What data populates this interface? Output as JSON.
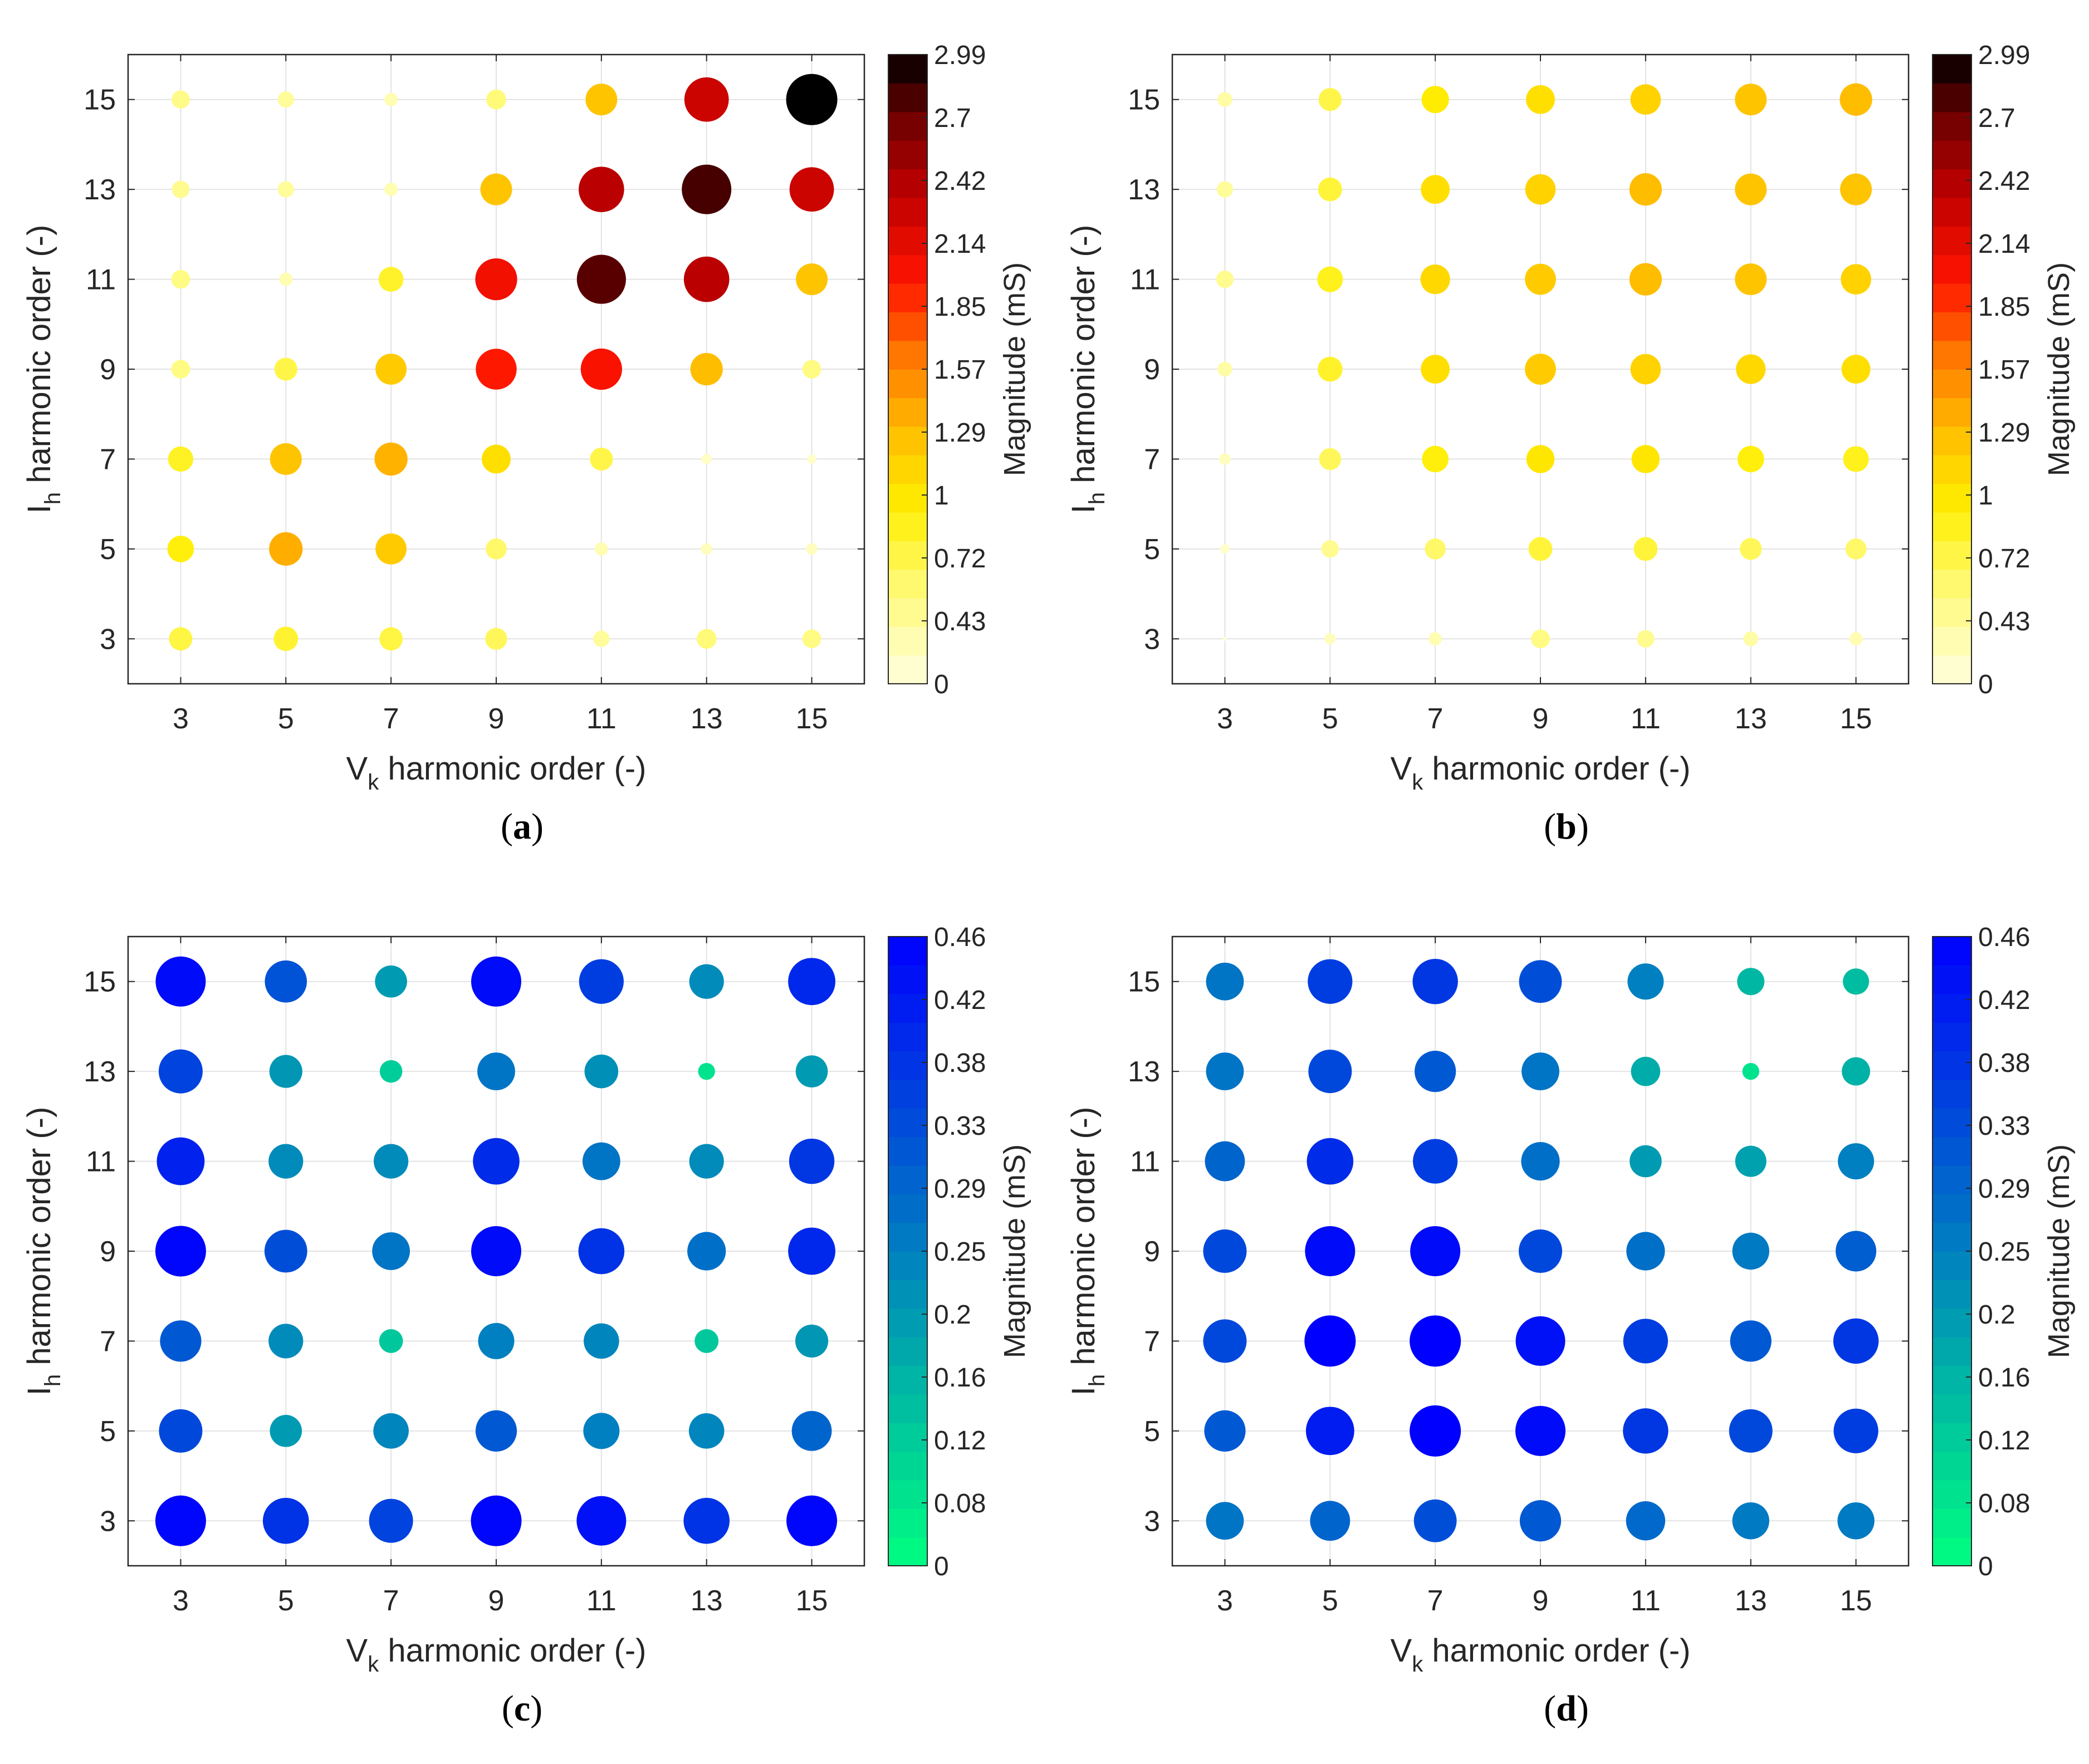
{
  "chart_data": [
    {
      "type": "scatter",
      "panel": "a",
      "caption": "a",
      "xlabel": "V",
      "xlabel_sub": "k",
      "xlabel_rest": " harmonic order (-)",
      "ylabel": "I",
      "ylabel_sub": "h",
      "ylabel_rest": " harmonic order (-)",
      "x_ticks": [
        3,
        5,
        7,
        9,
        11,
        13,
        15
      ],
      "y_ticks": [
        3,
        5,
        7,
        9,
        11,
        13,
        15
      ],
      "xlim": [
        2,
        16
      ],
      "ylim": [
        2,
        16
      ],
      "colorbar": {
        "label": "Magnitude (mS)",
        "min": 0,
        "max": 2.99,
        "ticks": [
          "0",
          "0.43",
          "0.72",
          "1",
          "1.29",
          "1.57",
          "1.85",
          "2.14",
          "2.42",
          "2.7",
          "2.99"
        ],
        "colormap": "hot"
      },
      "x": [
        3,
        5,
        7,
        9,
        11,
        13,
        15
      ],
      "y": [
        3,
        5,
        7,
        9,
        11,
        13,
        15
      ],
      "values": [
        [
          0.62,
          0.68,
          0.62,
          0.55,
          0.3,
          0.45,
          0.4
        ],
        [
          0.8,
          1.28,
          1.1,
          0.5,
          0.2,
          0.15,
          0.15
        ],
        [
          0.72,
          1.15,
          1.25,
          0.95,
          0.6,
          0.12,
          0.1
        ],
        [
          0.4,
          0.6,
          1.1,
          1.9,
          1.95,
          1.2,
          0.4
        ],
        [
          0.4,
          0.2,
          0.7,
          2.0,
          2.75,
          2.35,
          1.15
        ],
        [
          0.35,
          0.3,
          0.2,
          1.15,
          2.35,
          2.8,
          2.25
        ],
        [
          0.38,
          0.3,
          0.2,
          0.45,
          1.15,
          2.25,
          2.99
        ]
      ]
    },
    {
      "type": "scatter",
      "panel": "b",
      "caption": "b",
      "xlabel": "V",
      "xlabel_sub": "k",
      "xlabel_rest": " harmonic order (-)",
      "ylabel": "I",
      "ylabel_sub": "h",
      "ylabel_rest": " harmonic order (-)",
      "x_ticks": [
        3,
        5,
        7,
        9,
        11,
        13,
        15
      ],
      "y_ticks": [
        3,
        5,
        7,
        9,
        11,
        13,
        15
      ],
      "xlim": [
        2,
        16
      ],
      "ylim": [
        2,
        16
      ],
      "colorbar": {
        "label": "Magnitude (mS)",
        "min": 0,
        "max": 2.99,
        "ticks": [
          "0",
          "0.43",
          "0.72",
          "1",
          "1.29",
          "1.57",
          "1.85",
          "2.14",
          "2.42",
          "2.7",
          "2.99"
        ],
        "colormap": "hot"
      },
      "x": [
        3,
        5,
        7,
        9,
        11,
        13,
        15
      ],
      "y": [
        3,
        5,
        7,
        9,
        11,
        13,
        15
      ],
      "values": [
        [
          0.05,
          0.15,
          0.2,
          0.4,
          0.35,
          0.25,
          0.2
        ],
        [
          0.1,
          0.35,
          0.5,
          0.65,
          0.65,
          0.55,
          0.5
        ],
        [
          0.15,
          0.55,
          0.8,
          0.9,
          0.9,
          0.8,
          0.75
        ],
        [
          0.25,
          0.7,
          0.95,
          1.1,
          1.05,
          1.0,
          0.95
        ],
        [
          0.35,
          0.75,
          1.0,
          1.1,
          1.2,
          1.15,
          1.05
        ],
        [
          0.3,
          0.65,
          0.95,
          1.05,
          1.2,
          1.15,
          1.15
        ],
        [
          0.25,
          0.6,
          0.85,
          0.95,
          1.05,
          1.15,
          1.2
        ]
      ]
    },
    {
      "type": "scatter",
      "panel": "c",
      "caption": "c",
      "xlabel": "V",
      "xlabel_sub": "k",
      "xlabel_rest": " harmonic order (-)",
      "ylabel": "I",
      "ylabel_sub": "h",
      "ylabel_rest": " harmonic order (-)",
      "x_ticks": [
        3,
        5,
        7,
        9,
        11,
        13,
        15
      ],
      "y_ticks": [
        3,
        5,
        7,
        9,
        11,
        13,
        15
      ],
      "xlim": [
        2,
        16
      ],
      "ylim": [
        2,
        16
      ],
      "colorbar": {
        "label": "Magnitude (mS)",
        "min": 0,
        "max": 0.46,
        "ticks": [
          "0",
          "0.08",
          "0.12",
          "0.16",
          "0.2",
          "0.25",
          "0.29",
          "0.33",
          "0.38",
          "0.42",
          "0.46"
        ],
        "colormap": "winter"
      },
      "x": [
        3,
        5,
        7,
        9,
        11,
        13,
        15
      ],
      "y": [
        3,
        5,
        7,
        9,
        11,
        13,
        15
      ],
      "values": [
        [
          0.45,
          0.37,
          0.34,
          0.45,
          0.43,
          0.37,
          0.45
        ],
        [
          0.33,
          0.18,
          0.22,
          0.3,
          0.23,
          0.22,
          0.28
        ],
        [
          0.3,
          0.21,
          0.1,
          0.23,
          0.22,
          0.1,
          0.19
        ],
        [
          0.45,
          0.32,
          0.25,
          0.44,
          0.37,
          0.26,
          0.39
        ],
        [
          0.4,
          0.21,
          0.21,
          0.38,
          0.25,
          0.21,
          0.36
        ],
        [
          0.34,
          0.19,
          0.09,
          0.25,
          0.2,
          0.05,
          0.18
        ],
        [
          0.44,
          0.31,
          0.18,
          0.44,
          0.35,
          0.21,
          0.39
        ]
      ]
    },
    {
      "type": "scatter",
      "panel": "d",
      "caption": "d",
      "xlabel": "V",
      "xlabel_sub": "k",
      "xlabel_rest": " harmonic order (-)",
      "ylabel": "I",
      "ylabel_sub": "h",
      "ylabel_rest": " harmonic order (-)",
      "x_ticks": [
        3,
        5,
        7,
        9,
        11,
        13,
        15
      ],
      "y_ticks": [
        3,
        5,
        7,
        9,
        11,
        13,
        15
      ],
      "xlim": [
        2,
        16
      ],
      "ylim": [
        2,
        16
      ],
      "colorbar": {
        "label": "Magnitude (mS)",
        "min": 0,
        "max": 0.46,
        "ticks": [
          "0",
          "0.08",
          "0.12",
          "0.16",
          "0.2",
          "0.25",
          "0.29",
          "0.33",
          "0.38",
          "0.42",
          "0.46"
        ],
        "colormap": "winter"
      },
      "x": [
        3,
        5,
        7,
        9,
        11,
        13,
        15
      ],
      "y": [
        3,
        5,
        7,
        9,
        11,
        13,
        15
      ],
      "values": [
        [
          0.25,
          0.28,
          0.32,
          0.3,
          0.27,
          0.24,
          0.24
        ],
        [
          0.3,
          0.41,
          0.46,
          0.44,
          0.36,
          0.33,
          0.35
        ],
        [
          0.33,
          0.46,
          0.46,
          0.43,
          0.35,
          0.3,
          0.36
        ],
        [
          0.33,
          0.44,
          0.44,
          0.33,
          0.26,
          0.24,
          0.29
        ],
        [
          0.28,
          0.38,
          0.35,
          0.26,
          0.18,
          0.17,
          0.23
        ],
        [
          0.25,
          0.33,
          0.3,
          0.25,
          0.15,
          0.05,
          0.14
        ],
        [
          0.25,
          0.35,
          0.36,
          0.32,
          0.23,
          0.13,
          0.12
        ]
      ]
    }
  ]
}
